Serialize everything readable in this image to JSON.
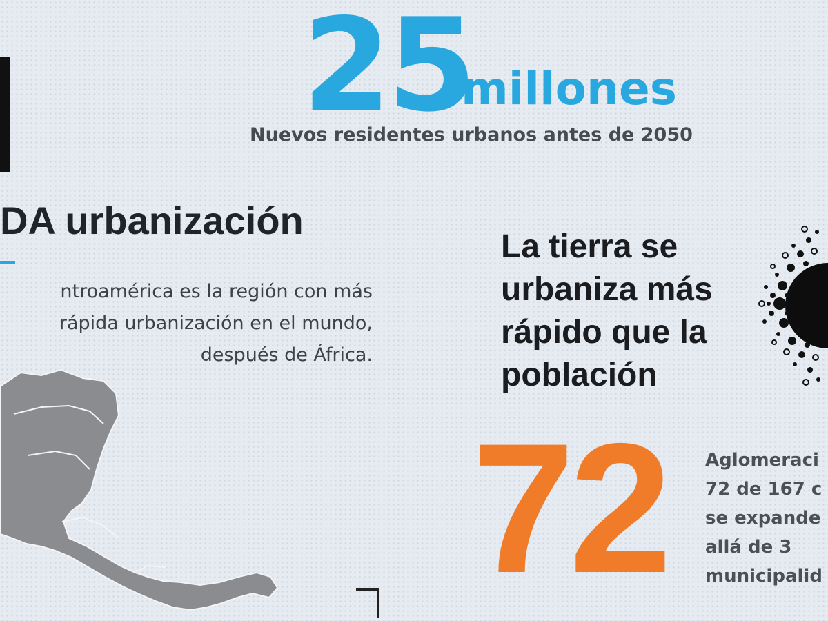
{
  "header": {
    "big_number": "25",
    "big_number_unit": "millones",
    "subtitle": "Nuevos residentes urbanos antes de 2050"
  },
  "urbanization": {
    "title": "DA urbanización",
    "description_lines": [
      "ntroamérica es la región con más",
      "rápida urbanización en el mundo,",
      "después de África."
    ]
  },
  "land": {
    "lines": [
      "La tierra se",
      "urbaniza más",
      "rápido que la",
      "población"
    ]
  },
  "agglomerations": {
    "big_number": "72",
    "lines": [
      "Aglomeraci",
      "72 de 167 c",
      "se expande",
      "allá de 3",
      "municipalid"
    ]
  },
  "icons": {
    "map": "central-america-map-icon",
    "circle": "urbanization-dots-icon"
  },
  "colors": {
    "blue": "#29a8e0",
    "orange": "#f07c2a",
    "dark": "#1a1c1f",
    "map_gray": "#8a8c8f"
  }
}
